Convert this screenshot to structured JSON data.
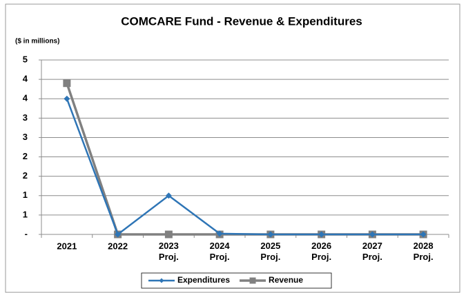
{
  "chart_data": {
    "type": "line",
    "title": "COMCARE Fund - Revenue & Expenditures",
    "ylabel": "($ in millions)",
    "categories": [
      "2021",
      "2022",
      "2023 Proj.",
      "2024 Proj.",
      "2025 Proj.",
      "2026 Proj.",
      "2027 Proj.",
      "2028 Proj."
    ],
    "series": [
      {
        "name": "Expenditures",
        "color": "#2e75b6",
        "marker": "diamond",
        "values": [
          3.5,
          0,
          1.0,
          0.02,
          0,
          0,
          0,
          0
        ]
      },
      {
        "name": "Revenue",
        "color": "#808080",
        "marker": "square",
        "values": [
          3.9,
          0,
          0,
          0,
          0,
          0,
          0,
          0
        ]
      }
    ],
    "ylim": [
      0,
      4.5
    ],
    "yticks": [
      {
        "value": 0,
        "label": "-"
      },
      {
        "value": 0.5,
        "label": "1"
      },
      1,
      {
        "value": 1.5,
        "label": "2"
      },
      2,
      {
        "value": 2.5,
        "label": "3"
      },
      3,
      {
        "value": 3.5,
        "label": "4"
      },
      4,
      {
        "value": 4.5,
        "label": "5"
      }
    ],
    "grid": true,
    "legend": "bottom"
  }
}
